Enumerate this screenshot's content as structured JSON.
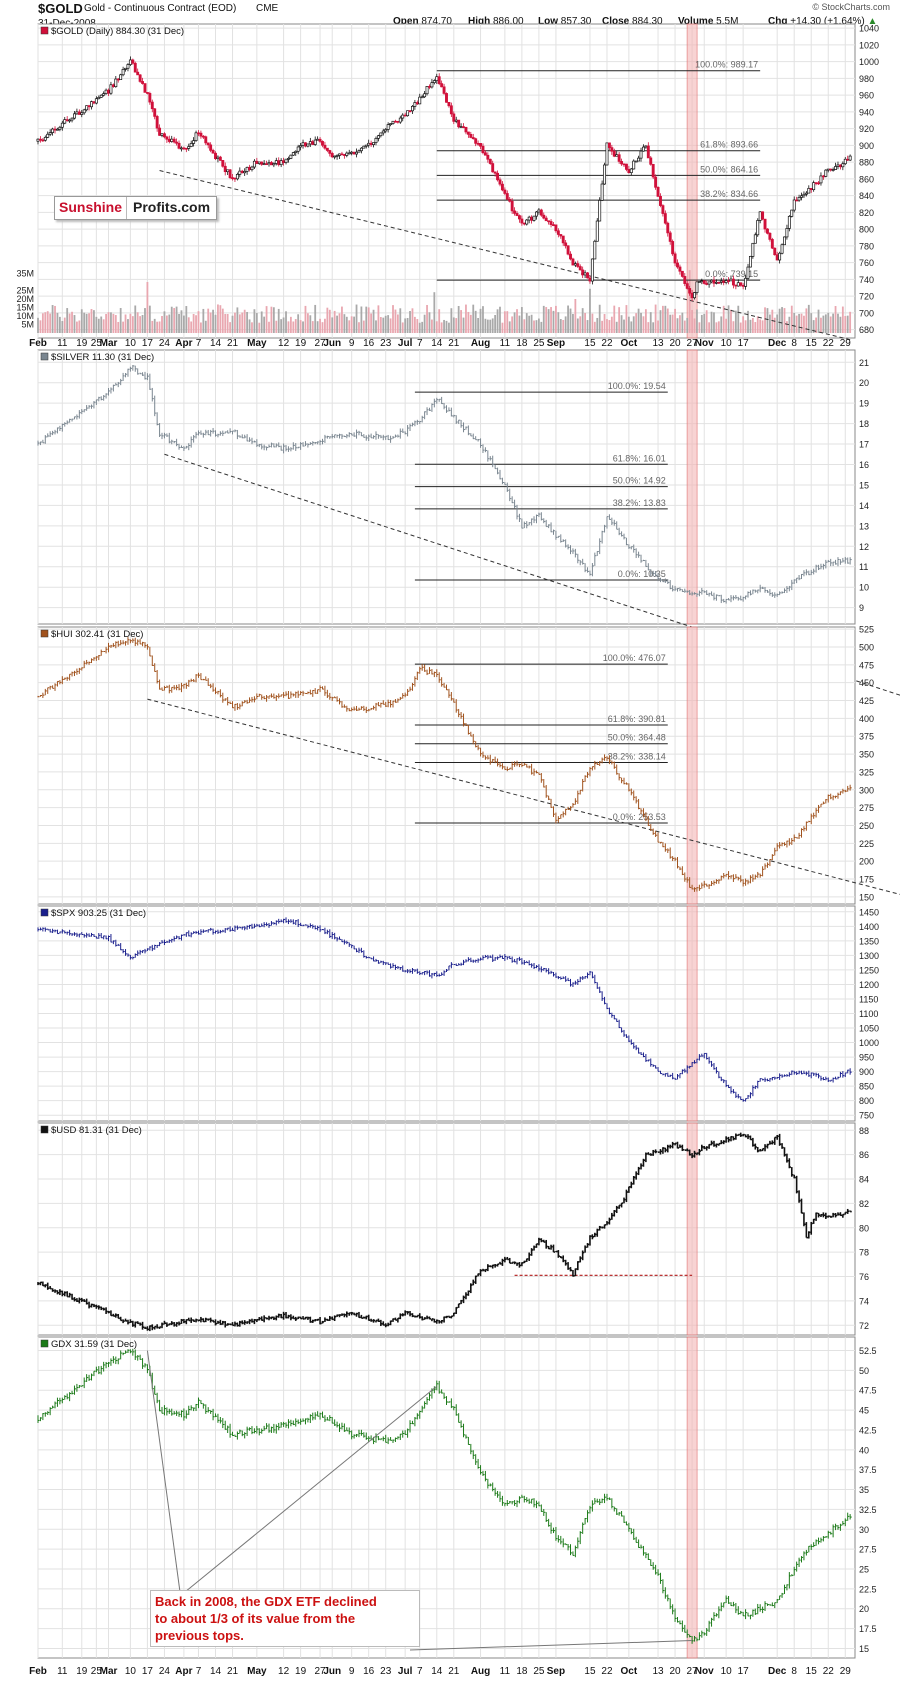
{
  "header": {
    "symbol": "$GOLD",
    "subtitle": "Gold - Continuous Contract (EOD)",
    "exchange": "CME",
    "date": "31-Dec-2008",
    "open_label": "Open",
    "open": "874.70",
    "high_label": "High",
    "high": "886.00",
    "low_label": "Low",
    "low": "857.30",
    "close_label": "Close",
    "close": "884.30",
    "volume_label": "Volume",
    "volume": "5.5M",
    "chg_label": "Chg",
    "chg": "+14.30 (+1.64%)",
    "source": "© StockCharts.com"
  },
  "logo": {
    "part1": "Sunshine",
    "part2": "Profits.com"
  },
  "annotation": {
    "lines": [
      "Back in 2008, the GDX ETF declined",
      "to about 1/3 of its value from the",
      "previous tops."
    ]
  },
  "x_axis": {
    "labels": [
      {
        "t": "Feb",
        "d": 0,
        "b": true
      },
      {
        "t": "11",
        "d": 10
      },
      {
        "t": "19",
        "d": 18
      },
      {
        "t": "25",
        "d": 24
      },
      {
        "t": "Mar",
        "d": 29,
        "b": true
      },
      {
        "t": "10",
        "d": 38
      },
      {
        "t": "17",
        "d": 45
      },
      {
        "t": "24",
        "d": 52
      },
      {
        "t": "Apr",
        "d": 60,
        "b": true
      },
      {
        "t": "7",
        "d": 66
      },
      {
        "t": "14",
        "d": 73
      },
      {
        "t": "21",
        "d": 80
      },
      {
        "t": "May",
        "d": 90,
        "b": true
      },
      {
        "t": "12",
        "d": 101
      },
      {
        "t": "19",
        "d": 108
      },
      {
        "t": "27",
        "d": 116
      },
      {
        "t": "Jun",
        "d": 121,
        "b": true
      },
      {
        "t": "9",
        "d": 129
      },
      {
        "t": "16",
        "d": 136
      },
      {
        "t": "23",
        "d": 143
      },
      {
        "t": "Jul",
        "d": 151,
        "b": true
      },
      {
        "t": "7",
        "d": 157
      },
      {
        "t": "14",
        "d": 164
      },
      {
        "t": "21",
        "d": 171
      },
      {
        "t": "Aug",
        "d": 182,
        "b": true
      },
      {
        "t": "11",
        "d": 192
      },
      {
        "t": "18",
        "d": 199
      },
      {
        "t": "25",
        "d": 206
      },
      {
        "t": "Sep",
        "d": 213,
        "b": true
      },
      {
        "t": "15",
        "d": 227
      },
      {
        "t": "22",
        "d": 234
      },
      {
        "t": "Oct",
        "d": 243,
        "b": true
      },
      {
        "t": "13",
        "d": 255
      },
      {
        "t": "20",
        "d": 262
      },
      {
        "t": "27",
        "d": 269
      },
      {
        "t": "Nov",
        "d": 274,
        "b": true
      },
      {
        "t": "10",
        "d": 283
      },
      {
        "t": "17",
        "d": 290
      },
      {
        "t": "Dec",
        "d": 304,
        "b": true
      },
      {
        "t": "8",
        "d": 311
      },
      {
        "t": "15",
        "d": 318
      },
      {
        "t": "22",
        "d": 325
      },
      {
        "t": "29",
        "d": 332
      }
    ]
  },
  "chart_data": [
    {
      "type": "line",
      "name": "gold",
      "label": "$GOLD (Daily) 884.30 (31 Dec)",
      "color": "#d0103a",
      "up_color": "#111111",
      "ylim": [
        670,
        1045
      ],
      "yticks": [
        680,
        700,
        720,
        740,
        760,
        780,
        800,
        820,
        840,
        860,
        880,
        900,
        920,
        940,
        960,
        980,
        1000,
        1020,
        1040
      ],
      "days": [
        0,
        29,
        38,
        45,
        50,
        60,
        66,
        80,
        90,
        101,
        108,
        116,
        121,
        129,
        136,
        143,
        151,
        157,
        164,
        171,
        182,
        192,
        199,
        206,
        213,
        220,
        227,
        234,
        240,
        243,
        250,
        255,
        262,
        269,
        271,
        274,
        283,
        290,
        297,
        304,
        311,
        318,
        325,
        334
      ],
      "values": [
        905,
        965,
        1002,
        960,
        915,
        895,
        915,
        860,
        880,
        880,
        900,
        905,
        885,
        890,
        900,
        920,
        935,
        955,
        985,
        930,
        900,
        840,
        805,
        820,
        800,
        760,
        740,
        900,
        880,
        870,
        900,
        840,
        760,
        715,
        740,
        735,
        740,
        730,
        820,
        760,
        835,
        850,
        870,
        884
      ],
      "fib": [
        {
          "label": "100.0%: 989.17",
          "value": 989.17
        },
        {
          "label": "61.8%: 893.66",
          "value": 893.66
        },
        {
          "label": "50.0%: 864.16",
          "value": 864.16
        },
        {
          "label": "38.2%: 834.66",
          "value": 834.66
        },
        {
          "label": "0.0%: 739.15",
          "value": 739.15
        }
      ],
      "trendline": [
        [
          50,
          870
        ],
        [
          334,
          668
        ]
      ],
      "volume": {
        "ylabels": [
          "35M",
          "25M",
          "20M",
          "15M",
          "10M",
          "5M"
        ],
        "yvalues": [
          35,
          25,
          20,
          15,
          10,
          5
        ],
        "ymax": 40,
        "base": 12,
        "spikes": [
          [
            45,
            30
          ],
          [
            163,
            24
          ],
          [
            221,
            20
          ],
          [
            227,
            26
          ],
          [
            268,
            37
          ]
        ]
      }
    },
    {
      "type": "line",
      "name": "silver",
      "label": "$SILVER 11.30 (31 Dec)",
      "color": "#7a8690",
      "ylim": [
        8.2,
        21.6
      ],
      "yticks": [
        9,
        10,
        11,
        12,
        13,
        14,
        15,
        16,
        17,
        18,
        19,
        20,
        21
      ],
      "days": [
        0,
        29,
        38,
        45,
        50,
        60,
        66,
        80,
        90,
        101,
        116,
        129,
        143,
        151,
        157,
        164,
        171,
        182,
        192,
        199,
        206,
        213,
        220,
        227,
        234,
        243,
        255,
        262,
        269,
        274,
        283,
        290,
        297,
        304,
        311,
        318,
        325,
        334
      ],
      "values": [
        17,
        19.5,
        20.8,
        20.2,
        17.5,
        16.8,
        17.5,
        17.6,
        17,
        16.8,
        17.2,
        17.5,
        17.3,
        17.6,
        18.2,
        19.2,
        18.3,
        17,
        15,
        13,
        13.5,
        12.5,
        11.7,
        10.6,
        13.5,
        12,
        10.4,
        9.9,
        9.6,
        9.8,
        9.3,
        9.5,
        10.0,
        9.6,
        10.3,
        10.8,
        11.2,
        11.3
      ],
      "fib": [
        {
          "label": "100.0%: 19.54",
          "value": 19.54
        },
        {
          "label": "61.8%: 16.01",
          "value": 16.01
        },
        {
          "label": "50.0%: 14.92",
          "value": 14.92
        },
        {
          "label": "38.2%: 13.83",
          "value": 13.83
        },
        {
          "label": "0.0%: 10.35",
          "value": 10.35
        }
      ],
      "trendline": [
        [
          52,
          16.5
        ],
        [
          355,
          4.7
        ]
      ]
    },
    {
      "type": "line",
      "name": "hui",
      "label": "$HUI 302.41 (31 Dec)",
      "color": "#a0521d",
      "ylim": [
        140,
        528
      ],
      "yticks": [
        150,
        175,
        200,
        225,
        250,
        275,
        300,
        325,
        350,
        375,
        400,
        425,
        450,
        475,
        500,
        525
      ],
      "days": [
        0,
        29,
        38,
        45,
        50,
        60,
        66,
        80,
        90,
        101,
        116,
        129,
        143,
        151,
        157,
        164,
        171,
        182,
        192,
        199,
        206,
        213,
        220,
        227,
        234,
        243,
        255,
        262,
        269,
        274,
        283,
        290,
        297,
        304,
        311,
        318,
        325,
        334
      ],
      "values": [
        430,
        500,
        510,
        500,
        440,
        445,
        460,
        415,
        430,
        430,
        440,
        410,
        420,
        430,
        470,
        460,
        420,
        350,
        330,
        335,
        320,
        260,
        280,
        330,
        345,
        300,
        230,
        200,
        160,
        165,
        180,
        170,
        180,
        220,
        230,
        260,
        290,
        302
      ],
      "fib": [
        {
          "label": "100.0%: 476.07",
          "value": 476.07
        },
        {
          "label": "61.8%: 390.81",
          "value": 390.81
        },
        {
          "label": "50.0%: 364.48",
          "value": 364.48
        },
        {
          "label": "38.2%: 338.14",
          "value": 338.14
        },
        {
          "label": "0.0%: 253.53",
          "value": 253.53
        }
      ],
      "trendline": [
        [
          45,
          427
        ],
        [
          355,
          153
        ]
      ]
    },
    {
      "type": "line",
      "name": "spx",
      "label": "$SPX 903.25 (31 Dec)",
      "color": "#1a1f8c",
      "ylim": [
        730,
        1470
      ],
      "yticks": [
        750,
        800,
        850,
        900,
        950,
        1000,
        1050,
        1100,
        1150,
        1200,
        1250,
        1300,
        1350,
        1400,
        1450
      ],
      "days": [
        0,
        29,
        38,
        45,
        60,
        66,
        80,
        90,
        101,
        108,
        116,
        129,
        136,
        143,
        151,
        164,
        171,
        182,
        192,
        199,
        213,
        220,
        227,
        234,
        243,
        255,
        262,
        269,
        274,
        283,
        290,
        297,
        304,
        311,
        318,
        325,
        334
      ],
      "values": [
        1390,
        1360,
        1290,
        1320,
        1370,
        1380,
        1390,
        1400,
        1420,
        1410,
        1390,
        1330,
        1290,
        1270,
        1250,
        1230,
        1270,
        1290,
        1290,
        1280,
        1230,
        1200,
        1240,
        1120,
        1000,
        900,
        880,
        930,
        960,
        850,
        800,
        870,
        880,
        900,
        890,
        870,
        903
      ]
    },
    {
      "type": "line",
      "name": "usd",
      "label": "$USD 81.31 (31 Dec)",
      "color": "#111111",
      "ylim": [
        71.2,
        88.6
      ],
      "yticks": [
        72,
        74,
        76,
        78,
        80,
        82,
        84,
        86,
        88
      ],
      "days": [
        0,
        29,
        38,
        45,
        60,
        66,
        80,
        90,
        101,
        116,
        129,
        143,
        151,
        164,
        171,
        182,
        192,
        199,
        206,
        213,
        220,
        227,
        234,
        240,
        250,
        262,
        269,
        274,
        283,
        290,
        297,
        304,
        311,
        316,
        320,
        325,
        334
      ],
      "values": [
        75.5,
        73,
        72.2,
        71.8,
        72.3,
        72.5,
        72,
        72.4,
        72.8,
        72.3,
        73,
        72,
        73,
        72.3,
        73,
        76.5,
        77.3,
        77,
        79,
        78,
        76.2,
        79.2,
        80.5,
        82,
        86,
        86.8,
        86,
        86.6,
        87.2,
        87.8,
        86.2,
        87.5,
        84,
        79.3,
        81.2,
        81,
        81.3
      ],
      "reference_line": {
        "value": 76.1,
        "from_day": 196,
        "to_day": 269
      }
    },
    {
      "type": "line",
      "name": "gdx",
      "label": "GDX 31.59 (31 Dec)",
      "color": "#1b7a18",
      "ylim": [
        13.8,
        54.2
      ],
      "yticks": [
        15,
        17.5,
        20,
        22.5,
        25,
        27.5,
        30,
        32.5,
        35,
        37.5,
        40,
        42.5,
        45,
        47.5,
        50,
        52.5
      ],
      "days": [
        0,
        29,
        38,
        45,
        50,
        60,
        66,
        80,
        90,
        101,
        116,
        129,
        143,
        151,
        157,
        164,
        171,
        182,
        192,
        199,
        206,
        213,
        220,
        227,
        234,
        243,
        255,
        262,
        269,
        274,
        283,
        290,
        297,
        304,
        311,
        318,
        325,
        334
      ],
      "values": [
        44,
        51,
        52.5,
        50,
        45,
        44.5,
        46,
        42,
        42.5,
        43,
        44.5,
        42,
        41,
        42,
        45,
        48,
        45,
        37,
        33,
        34,
        33,
        29,
        27,
        33,
        34,
        30,
        24,
        19,
        16,
        17,
        21,
        19,
        20,
        21,
        25,
        28,
        29.5,
        31.6
      ],
      "annotation_pointers": [
        [
          45,
          52.5
        ],
        [
          164,
          48
        ],
        [
          269,
          16
        ]
      ]
    }
  ],
  "highlight_day": 269
}
